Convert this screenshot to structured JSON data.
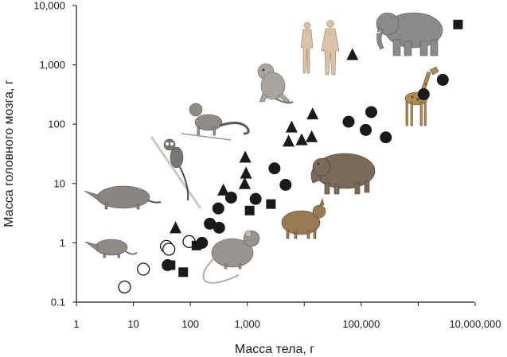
{
  "chart_data": {
    "type": "scatter",
    "title": "",
    "xlabel": "Масса тела, г",
    "ylabel": "Масса головного мозга, г",
    "x_scale": "log",
    "y_scale": "log",
    "xlim": [
      1,
      20000000
    ],
    "ylim": [
      0.1,
      10000
    ],
    "grid": false,
    "legend": "none",
    "x_ticks": [
      {
        "value": 1,
        "label": "1"
      },
      {
        "value": 10,
        "label": "10"
      },
      {
        "value": 100,
        "label": "100"
      },
      {
        "value": 1000,
        "label": "1,000"
      },
      {
        "value": 10000,
        "label": ""
      },
      {
        "value": 100000,
        "label": "100,000"
      },
      {
        "value": 1000000,
        "label": ""
      },
      {
        "value": 10000000,
        "label": "10,000,000"
      }
    ],
    "y_ticks": [
      {
        "value": 0.1,
        "label": "0.1"
      },
      {
        "value": 1,
        "label": "1"
      },
      {
        "value": 10,
        "label": "10"
      },
      {
        "value": 100,
        "label": "100"
      },
      {
        "value": 1000,
        "label": "1,000"
      },
      {
        "value": 10000,
        "label": "10,000"
      }
    ],
    "series": [
      {
        "marker": "circle-open",
        "color": "#1a1a1a",
        "points": [
          {
            "x": 7,
            "y": 0.18
          },
          {
            "x": 15,
            "y": 0.36
          },
          {
            "x": 38,
            "y": 0.87
          },
          {
            "x": 42,
            "y": 0.78
          },
          {
            "x": 95,
            "y": 1.05
          }
        ]
      },
      {
        "marker": "circle-filled",
        "color": "#1a1a1a",
        "points": [
          {
            "x": 40,
            "y": 0.42
          },
          {
            "x": 160,
            "y": 1.0
          },
          {
            "x": 220,
            "y": 2.1
          },
          {
            "x": 320,
            "y": 1.8
          },
          {
            "x": 310,
            "y": 3.8
          },
          {
            "x": 520,
            "y": 5.8
          },
          {
            "x": 1400,
            "y": 5.5
          },
          {
            "x": 3000,
            "y": 18
          },
          {
            "x": 4700,
            "y": 9.5
          },
          {
            "x": 60000,
            "y": 110
          },
          {
            "x": 120000,
            "y": 80
          },
          {
            "x": 150000,
            "y": 160
          },
          {
            "x": 270000,
            "y": 60
          },
          {
            "x": 1250000,
            "y": 320
          },
          {
            "x": 2700000,
            "y": 560
          }
        ]
      },
      {
        "marker": "triangle",
        "color": "#1a1a1a",
        "points": [
          {
            "x": 55,
            "y": 1.8
          },
          {
            "x": 380,
            "y": 7.8
          },
          {
            "x": 900,
            "y": 10
          },
          {
            "x": 950,
            "y": 15
          },
          {
            "x": 920,
            "y": 28
          },
          {
            "x": 5300,
            "y": 52
          },
          {
            "x": 6000,
            "y": 90
          },
          {
            "x": 9000,
            "y": 55
          },
          {
            "x": 13500,
            "y": 62
          },
          {
            "x": 14000,
            "y": 150
          },
          {
            "x": 70000,
            "y": 1500
          }
        ]
      },
      {
        "marker": "square",
        "color": "#1a1a1a",
        "points": [
          {
            "x": 45,
            "y": 0.42
          },
          {
            "x": 75,
            "y": 0.32
          },
          {
            "x": 128,
            "y": 0.9
          },
          {
            "x": 1100,
            "y": 3.5
          },
          {
            "x": 2600,
            "y": 4.5
          },
          {
            "x": 5000000,
            "y": 4800
          }
        ]
      }
    ]
  },
  "illustrations": [
    {
      "name": "elephant-illustration",
      "icon": "elephant"
    },
    {
      "name": "giraffe-illustration",
      "icon": "giraffe"
    },
    {
      "name": "humans-illustration",
      "icon": "humans"
    },
    {
      "name": "monkey-illustration",
      "icon": "monkey"
    },
    {
      "name": "small-monkey-illustration",
      "icon": "marmoset"
    },
    {
      "name": "tarsier-illustration",
      "icon": "tarsier"
    },
    {
      "name": "capybara-illustration",
      "icon": "capybara"
    },
    {
      "name": "agouti-illustration",
      "icon": "agouti"
    },
    {
      "name": "shrew-illustration",
      "icon": "shrew"
    },
    {
      "name": "small-shrew-illustration",
      "icon": "small-shrew"
    },
    {
      "name": "rat-illustration",
      "icon": "rat"
    }
  ]
}
